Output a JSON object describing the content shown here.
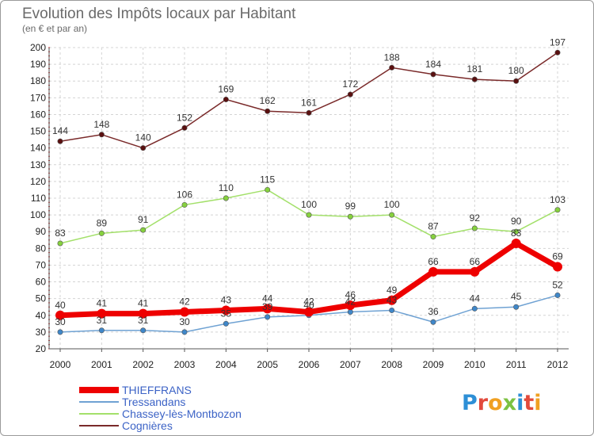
{
  "chart_data": {
    "type": "line",
    "title": "Evolution des Impôts locaux par Habitant",
    "subtitle": "(en € et par an)",
    "x": [
      "2000",
      "2001",
      "2002",
      "2003",
      "2004",
      "2005",
      "2006",
      "2007",
      "2008",
      "2009",
      "2010",
      "2011",
      "2012"
    ],
    "ylim": [
      20,
      200
    ],
    "yticks": [
      20,
      30,
      40,
      50,
      60,
      70,
      80,
      90,
      100,
      110,
      120,
      130,
      140,
      150,
      160,
      170,
      180,
      190,
      200
    ],
    "grid": true,
    "legend_position": "bottom-left",
    "series": [
      {
        "name": "Cognières",
        "color": "#7a2a2a",
        "marker": "#5a1010",
        "highlight": false,
        "values": [
          144,
          148,
          140,
          152,
          169,
          162,
          161,
          172,
          188,
          184,
          181,
          180,
          197
        ]
      },
      {
        "name": "Chassey-lès-Montbozon",
        "color": "#a3e06a",
        "marker": "#86d13e",
        "highlight": false,
        "values": [
          83,
          89,
          91,
          106,
          110,
          115,
          100,
          99,
          100,
          87,
          92,
          90,
          103
        ]
      },
      {
        "name": "Tressandans",
        "color": "#6fa2d3",
        "marker": "#3f87c9",
        "highlight": false,
        "values": [
          30,
          31,
          31,
          30,
          35,
          39,
          40,
          42,
          43,
          36,
          44,
          45,
          52
        ]
      },
      {
        "name": "THIEFFRANS",
        "color": "#ee0000",
        "marker": "#ee0000",
        "highlight": true,
        "values": [
          40,
          41,
          41,
          42,
          43,
          44,
          42,
          46,
          49,
          66,
          66,
          83,
          69
        ]
      }
    ],
    "legend_order": [
      "THIEFFRANS",
      "Tressandans",
      "Chassey-lès-Montbozon",
      "Cognières"
    ]
  },
  "watermark": "Proxiti"
}
